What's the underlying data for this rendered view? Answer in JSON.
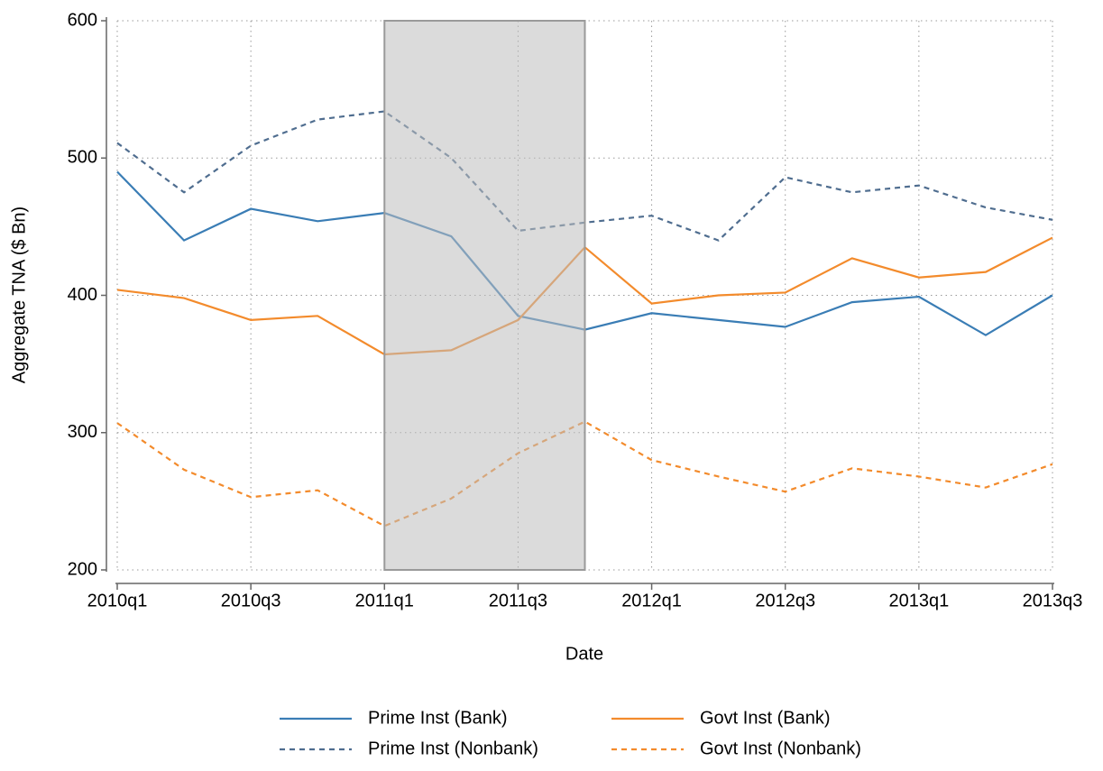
{
  "chart_data": {
    "type": "line",
    "x_label": "Date",
    "y_label": "Aggregate TNA ($ Bn)",
    "categories": [
      "2010q1",
      null,
      "2010q3",
      null,
      "2011q1",
      null,
      "2011q3",
      null,
      "2012q1",
      null,
      "2012q3",
      null,
      "2013q1",
      null,
      "2013q3"
    ],
    "series": [
      {
        "name": "Prime Inst (Bank)",
        "color": "#3a7db5",
        "dash": false,
        "values": [
          490,
          440,
          463,
          454,
          460,
          443,
          385,
          375,
          387,
          382,
          377,
          395,
          399,
          371,
          400
        ]
      },
      {
        "name": "Prime Inst (Nonbank)",
        "color": "#4f6d8f",
        "dash": true,
        "values": [
          511,
          475,
          509,
          528,
          534,
          500,
          447,
          453,
          458,
          440,
          486,
          475,
          480,
          464,
          455
        ]
      },
      {
        "name": "Govt Inst (Bank)",
        "color": "#f38b2c",
        "dash": false,
        "values": [
          404,
          398,
          382,
          385,
          357,
          360,
          382,
          435,
          394,
          400,
          402,
          427,
          413,
          417,
          442
        ]
      },
      {
        "name": "Govt Inst (Nonbank)",
        "color": "#f38b2c",
        "dash": true,
        "values": [
          307,
          273,
          253,
          258,
          232,
          252,
          285,
          308,
          280,
          268,
          257,
          274,
          268,
          260,
          277
        ]
      }
    ],
    "shade": [
      4,
      7
    ],
    "ylim": [
      200,
      600
    ],
    "yticks": [
      200,
      300,
      400,
      500,
      600
    ],
    "grid": true
  }
}
